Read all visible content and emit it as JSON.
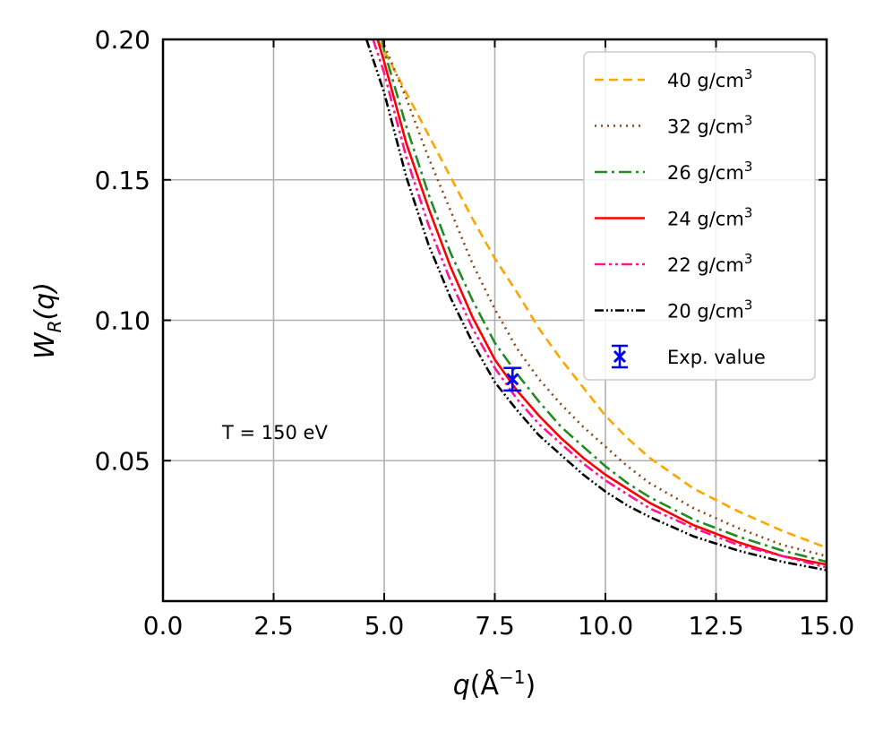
{
  "chart_data": {
    "type": "line",
    "xlabel_var": "q",
    "xlabel_unit": "Å",
    "xlabel_exp": "−1",
    "ylabel_var": "W",
    "ylabel_sub": "R",
    "ylabel_arg": "(q)",
    "xlim": [
      0.0,
      15.0
    ],
    "ylim": [
      0.0,
      0.2
    ],
    "xticks": [
      0.0,
      2.5,
      5.0,
      7.5,
      10.0,
      12.5,
      15.0
    ],
    "xtick_labels": [
      "0.0",
      "2.5",
      "5.0",
      "7.5",
      "10.0",
      "12.5",
      "15.0"
    ],
    "yticks": [
      0.05,
      0.1,
      0.15,
      0.2
    ],
    "ytick_labels": [
      "0.05",
      "0.10",
      "0.15",
      "0.20"
    ],
    "grid": true,
    "legend_position": "top-right",
    "annotation": "T = 150 eV",
    "series": [
      {
        "name": "40 g/cm",
        "sup": "3",
        "color": "#ffa500",
        "dash": "10,6",
        "x": [
          4.85,
          5.0,
          5.5,
          6.0,
          6.5,
          7.0,
          7.5,
          8.0,
          8.5,
          9.0,
          9.5,
          10.0,
          10.5,
          11.0,
          12.0,
          13.0,
          14.0,
          15.0
        ],
        "y": [
          0.2,
          0.196,
          0.181,
          0.166,
          0.151,
          0.136,
          0.122,
          0.11,
          0.097,
          0.086,
          0.076,
          0.066,
          0.058,
          0.051,
          0.04,
          0.032,
          0.025,
          0.019
        ]
      },
      {
        "name": "32 g/cm",
        "sup": "3",
        "color": "#8b4513",
        "dash": "2,5",
        "x": [
          4.95,
          5.0,
          5.5,
          6.0,
          6.5,
          7.0,
          7.5,
          8.0,
          8.5,
          9.0,
          9.5,
          10.0,
          10.5,
          11.0,
          12.0,
          13.0,
          14.0,
          15.0
        ],
        "y": [
          0.2,
          0.198,
          0.179,
          0.158,
          0.139,
          0.12,
          0.104,
          0.09,
          0.079,
          0.07,
          0.062,
          0.055,
          0.048,
          0.042,
          0.033,
          0.026,
          0.02,
          0.016
        ]
      },
      {
        "name": "26 g/cm",
        "sup": "3",
        "color": "#228b22",
        "dash": "14,5,3,5",
        "x": [
          4.95,
          5.0,
          5.5,
          6.0,
          6.5,
          7.0,
          7.5,
          8.0,
          8.5,
          9.0,
          9.5,
          10.0,
          10.5,
          11.0,
          12.0,
          13.0,
          14.0,
          15.0
        ],
        "y": [
          0.2,
          0.196,
          0.169,
          0.145,
          0.124,
          0.107,
          0.092,
          0.081,
          0.071,
          0.062,
          0.055,
          0.048,
          0.042,
          0.037,
          0.029,
          0.023,
          0.018,
          0.014
        ]
      },
      {
        "name": "24 g/cm",
        "sup": "3",
        "color": "#ff0000",
        "dash": "",
        "x": [
          4.85,
          5.0,
          5.5,
          6.0,
          6.5,
          7.0,
          7.5,
          8.0,
          8.5,
          9.0,
          9.5,
          10.0,
          10.5,
          11.0,
          12.0,
          13.0,
          14.0,
          15.0
        ],
        "y": [
          0.2,
          0.192,
          0.163,
          0.14,
          0.119,
          0.101,
          0.086,
          0.075,
          0.066,
          0.058,
          0.051,
          0.045,
          0.04,
          0.035,
          0.027,
          0.021,
          0.016,
          0.013
        ]
      },
      {
        "name": "22 g/cm",
        "sup": "3",
        "color": "#ff1493",
        "dash": "12,4,3,4,3,4",
        "x": [
          4.75,
          5.0,
          5.5,
          6.0,
          6.5,
          7.0,
          7.5,
          8.0,
          8.5,
          9.0,
          9.5,
          10.0,
          10.5,
          11.0,
          12.0,
          13.0,
          14.0,
          15.0
        ],
        "y": [
          0.2,
          0.188,
          0.158,
          0.134,
          0.114,
          0.097,
          0.083,
          0.072,
          0.063,
          0.056,
          0.049,
          0.043,
          0.038,
          0.033,
          0.026,
          0.02,
          0.016,
          0.012
        ]
      },
      {
        "name": "20 g/cm",
        "sup": "3",
        "color": "#000000",
        "dash": "10,3,2,3,2,3",
        "x": [
          4.6,
          5.0,
          5.5,
          6.0,
          6.5,
          7.0,
          7.5,
          8.0,
          8.5,
          9.0,
          9.5,
          10.0,
          10.5,
          11.0,
          12.0,
          13.0,
          14.0,
          15.0
        ],
        "y": [
          0.2,
          0.181,
          0.151,
          0.127,
          0.108,
          0.092,
          0.078,
          0.068,
          0.059,
          0.052,
          0.045,
          0.039,
          0.034,
          0.03,
          0.023,
          0.018,
          0.014,
          0.011
        ]
      }
    ],
    "experiment": {
      "name": "Exp. value",
      "x": 7.9,
      "y": 0.079,
      "yerr": 0.004,
      "color": "#0000ff",
      "marker": "x"
    }
  }
}
